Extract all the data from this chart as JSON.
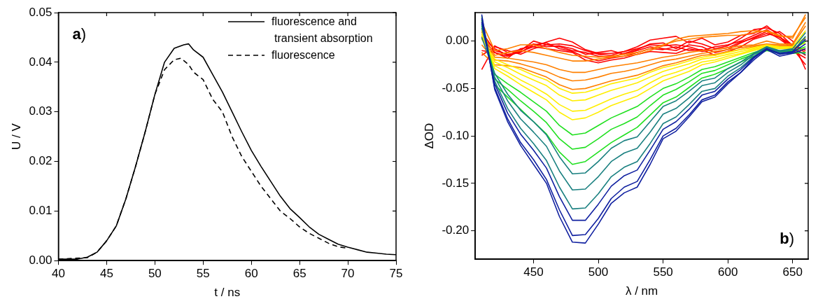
{
  "chart_data": [
    {
      "type": "line",
      "xlabel": "t / ns",
      "ylabel": "U / V",
      "xlim": [
        40,
        75
      ],
      "ylim": [
        0,
        0.05
      ],
      "xticks": [
        40,
        45,
        50,
        55,
        60,
        65,
        70,
        75
      ],
      "yticks": [
        {
          "value": 0,
          "label": "0.00"
        },
        {
          "value": 0.01,
          "label": "0.01"
        },
        {
          "value": 0.02,
          "label": "0.02"
        },
        {
          "value": 0.03,
          "label": "0.03"
        },
        {
          "value": 0.04,
          "label": "0.04"
        },
        {
          "value": 0.05,
          "label": "0.05"
        }
      ],
      "grid": false,
      "legend": "top right",
      "marker": "none",
      "annotations": [
        "a)"
      ],
      "series": [
        {
          "name": "fluorescence and transient absorption",
          "color": "#000000",
          "line_style": "solid",
          "x": [
            40,
            42,
            43,
            44,
            45,
            46,
            47,
            48,
            49,
            50,
            51,
            52,
            53,
            53.5,
            54,
            55,
            56,
            57,
            58,
            59,
            60,
            61,
            62,
            63,
            64,
            65,
            66,
            67,
            68,
            69,
            70,
            71,
            72,
            73,
            74,
            75
          ],
          "values": [
            0.0003,
            0.0003,
            0.0007,
            0.0017,
            0.004,
            0.007,
            0.0125,
            0.019,
            0.026,
            0.0335,
            0.04,
            0.0428,
            0.0435,
            0.0437,
            0.0425,
            0.041,
            0.0375,
            0.034,
            0.03,
            0.026,
            0.0222,
            0.019,
            0.016,
            0.013,
            0.0105,
            0.0087,
            0.0068,
            0.0053,
            0.0043,
            0.0033,
            0.0027,
            0.0022,
            0.0017,
            0.0015,
            0.0013,
            0.0012
          ]
        },
        {
          "name": "fluorescence",
          "color": "#000000",
          "line_style": "dashed",
          "x": [
            40,
            43,
            44,
            45,
            46,
            47,
            48,
            49,
            50,
            51,
            52,
            52.7,
            53.5,
            54,
            55,
            56,
            57,
            58,
            59,
            60,
            61,
            62,
            63,
            64,
            65,
            66,
            67,
            68,
            69,
            70
          ],
          "values": [
            0.0003,
            0.0006,
            0.0017,
            0.004,
            0.007,
            0.0125,
            0.019,
            0.026,
            0.0335,
            0.0385,
            0.0405,
            0.0408,
            0.0395,
            0.038,
            0.0365,
            0.0325,
            0.03,
            0.025,
            0.021,
            0.018,
            0.015,
            0.0125,
            0.01,
            0.0085,
            0.0068,
            0.0055,
            0.0045,
            0.0035,
            0.0028,
            0.0025
          ]
        }
      ]
    },
    {
      "type": "line",
      "xlabel": "λ / nm",
      "ylabel": "ΔOD",
      "xlim": [
        405,
        662
      ],
      "ylim": [
        -0.23,
        0.03
      ],
      "xticks": [
        450,
        500,
        550,
        600,
        650
      ],
      "yticks": [
        {
          "value": -0.2,
          "label": "-0.20"
        },
        {
          "value": -0.15,
          "label": "-0.15"
        },
        {
          "value": -0.1,
          "label": "-0.10"
        },
        {
          "value": -0.05,
          "label": "-0.05"
        },
        {
          "value": 0,
          "label": "0.00"
        }
      ],
      "grid": false,
      "legend": false,
      "marker": "none",
      "annotations": [
        "b)"
      ],
      "x": [
        410,
        420,
        430,
        440,
        450,
        460,
        470,
        480,
        490,
        500,
        510,
        520,
        530,
        540,
        550,
        560,
        570,
        580,
        590,
        600,
        610,
        620,
        630,
        640,
        650,
        660
      ],
      "series": [
        {
          "color": "#1020a0",
          "values": [
            0.028,
            -0.051,
            -0.085,
            -0.11,
            -0.13,
            -0.15,
            -0.185,
            -0.212,
            -0.213,
            -0.193,
            -0.171,
            -0.16,
            -0.154,
            -0.13,
            -0.103,
            -0.095,
            -0.08,
            -0.064,
            -0.059,
            -0.045,
            -0.033,
            -0.02,
            -0.009,
            -0.016,
            -0.013,
            -0.008
          ]
        },
        {
          "color": "#1020a0",
          "values": [
            0.024,
            -0.049,
            -0.082,
            -0.107,
            -0.125,
            -0.146,
            -0.178,
            -0.205,
            -0.204,
            -0.187,
            -0.166,
            -0.154,
            -0.148,
            -0.125,
            -0.1,
            -0.092,
            -0.078,
            -0.062,
            -0.057,
            -0.043,
            -0.033,
            -0.018,
            -0.008,
            -0.014,
            -0.012,
            -0.003
          ]
        },
        {
          "color": "#1020a0",
          "values": [
            0.02,
            -0.045,
            -0.076,
            -0.098,
            -0.115,
            -0.134,
            -0.164,
            -0.189,
            -0.189,
            -0.172,
            -0.153,
            -0.142,
            -0.136,
            -0.115,
            -0.093,
            -0.085,
            -0.072,
            -0.057,
            -0.053,
            -0.04,
            -0.03,
            -0.017,
            -0.008,
            -0.013,
            -0.011,
            0.002
          ]
        },
        {
          "color": "#1a8080",
          "values": [
            0.018,
            -0.042,
            -0.071,
            -0.092,
            -0.108,
            -0.126,
            -0.154,
            -0.177,
            -0.176,
            -0.161,
            -0.143,
            -0.133,
            -0.127,
            -0.108,
            -0.087,
            -0.08,
            -0.067,
            -0.053,
            -0.05,
            -0.037,
            -0.028,
            -0.016,
            -0.007,
            -0.012,
            -0.011,
            0.005
          ]
        },
        {
          "color": "#1a8080",
          "values": [
            0.014,
            -0.038,
            -0.063,
            -0.082,
            -0.096,
            -0.111,
            -0.137,
            -0.157,
            -0.156,
            -0.143,
            -0.127,
            -0.118,
            -0.113,
            -0.096,
            -0.077,
            -0.071,
            -0.06,
            -0.047,
            -0.044,
            -0.033,
            -0.025,
            -0.014,
            -0.006,
            -0.011,
            -0.009,
            -0.014
          ]
        },
        {
          "color": "#1a8080",
          "values": [
            0.004,
            -0.034,
            -0.056,
            -0.073,
            -0.085,
            -0.099,
            -0.122,
            -0.14,
            -0.139,
            -0.127,
            -0.113,
            -0.105,
            -0.101,
            -0.085,
            -0.069,
            -0.063,
            -0.053,
            -0.042,
            -0.039,
            -0.029,
            -0.022,
            -0.013,
            -0.006,
            -0.01,
            -0.008,
            0.009
          ]
        },
        {
          "color": "#20e020",
          "values": [
            0.026,
            -0.046,
            -0.059,
            -0.072,
            -0.085,
            -0.098,
            -0.117,
            -0.13,
            -0.127,
            -0.117,
            -0.107,
            -0.099,
            -0.091,
            -0.078,
            -0.065,
            -0.059,
            -0.049,
            -0.039,
            -0.035,
            -0.029,
            -0.022,
            -0.016,
            -0.01,
            -0.013,
            -0.013,
            -0.012
          ]
        },
        {
          "color": "#20e020",
          "values": [
            0.022,
            -0.04,
            -0.051,
            -0.063,
            -0.074,
            -0.086,
            -0.103,
            -0.114,
            -0.112,
            -0.103,
            -0.093,
            -0.087,
            -0.08,
            -0.068,
            -0.057,
            -0.051,
            -0.043,
            -0.034,
            -0.031,
            -0.025,
            -0.019,
            -0.014,
            -0.009,
            -0.011,
            -0.011,
            -0.006
          ]
        },
        {
          "color": "#20e020",
          "values": [
            0.016,
            -0.035,
            -0.045,
            -0.054,
            -0.064,
            -0.074,
            -0.089,
            -0.099,
            -0.097,
            -0.089,
            -0.081,
            -0.075,
            -0.069,
            -0.059,
            -0.05,
            -0.045,
            -0.038,
            -0.03,
            -0.027,
            -0.022,
            -0.017,
            -0.012,
            -0.008,
            -0.01,
            -0.01,
            0
          ]
        },
        {
          "color": "#ffee00",
          "values": [
            0.012,
            -0.029,
            -0.037,
            -0.046,
            -0.054,
            -0.062,
            -0.075,
            -0.083,
            -0.081,
            -0.075,
            -0.068,
            -0.063,
            -0.058,
            -0.05,
            -0.042,
            -0.037,
            -0.032,
            -0.025,
            -0.022,
            -0.018,
            -0.014,
            -0.01,
            -0.007,
            -0.008,
            -0.008,
            -0.008
          ]
        },
        {
          "color": "#ffee00",
          "values": [
            0.008,
            -0.026,
            -0.033,
            -0.041,
            -0.048,
            -0.056,
            -0.067,
            -0.074,
            -0.073,
            -0.067,
            -0.061,
            -0.056,
            -0.052,
            -0.044,
            -0.037,
            -0.033,
            -0.028,
            -0.022,
            -0.02,
            -0.016,
            -0.013,
            -0.009,
            -0.006,
            -0.007,
            -0.007,
            -0.002
          ]
        },
        {
          "color": "#ffee00",
          "values": [
            0.006,
            -0.022,
            -0.028,
            -0.035,
            -0.041,
            -0.047,
            -0.057,
            -0.063,
            -0.062,
            -0.057,
            -0.052,
            -0.048,
            -0.044,
            -0.038,
            -0.032,
            -0.028,
            -0.024,
            -0.019,
            -0.017,
            -0.014,
            -0.011,
            -0.008,
            -0.005,
            -0.006,
            -0.006,
            0.004
          ]
        },
        {
          "color": "#ffee00",
          "values": [
            0.002,
            -0.019,
            -0.025,
            -0.03,
            -0.036,
            -0.041,
            -0.05,
            -0.055,
            -0.054,
            -0.05,
            -0.045,
            -0.042,
            -0.039,
            -0.033,
            -0.028,
            -0.025,
            -0.021,
            -0.017,
            -0.015,
            -0.012,
            -0.009,
            -0.007,
            -0.004,
            -0.006,
            -0.006,
            0.011
          ]
        },
        {
          "color": "#ff8000",
          "values": [
            -0.012,
            -0.025,
            -0.026,
            -0.028,
            -0.033,
            -0.038,
            -0.046,
            -0.051,
            -0.05,
            -0.046,
            -0.042,
            -0.039,
            -0.036,
            -0.031,
            -0.026,
            -0.023,
            -0.019,
            -0.015,
            -0.014,
            -0.011,
            -0.009,
            -0.006,
            -0.004,
            -0.005,
            -0.005,
            0.003
          ]
        },
        {
          "color": "#ff8000",
          "values": [
            -0.004,
            -0.02,
            -0.021,
            -0.024,
            -0.028,
            -0.032,
            -0.038,
            -0.042,
            -0.041,
            -0.038,
            -0.034,
            -0.032,
            -0.029,
            -0.025,
            -0.021,
            -0.019,
            -0.016,
            -0.013,
            -0.011,
            -0.009,
            -0.007,
            -0.005,
            -0.003,
            -0.004,
            -0.004,
            0.016
          ]
        },
        {
          "color": "#ff8000",
          "values": [
            0.004,
            -0.017,
            -0.018,
            -0.02,
            -0.022,
            -0.025,
            -0.03,
            -0.033,
            -0.033,
            -0.03,
            -0.027,
            -0.025,
            -0.023,
            -0.02,
            -0.017,
            -0.015,
            -0.012,
            -0.01,
            -0.009,
            -0.007,
            -0.005,
            -0.004,
            0,
            -0.003,
            -0.003,
            0.02
          ]
        },
        {
          "color": "#ff8000",
          "values": [
            0.01,
            -0.015,
            -0.012,
            -0.01,
            -0.012,
            -0.015,
            -0.018,
            -0.021,
            -0.021,
            -0.019,
            -0.017,
            -0.016,
            -0.014,
            -0.01,
            -0.005,
            0.002,
            0.005,
            0.006,
            0.007,
            0.008,
            0.01,
            0.011,
            0.01,
            0.005,
            0.005,
            0.025
          ]
        },
        {
          "color": "#ff8000",
          "values": [
            0.02,
            -0.01,
            -0.008,
            -0.004,
            -0.004,
            -0.008,
            -0.012,
            -0.015,
            -0.016,
            -0.017,
            -0.016,
            -0.014,
            -0.012,
            -0.008,
            -0.004,
            0,
            0.002,
            0.004,
            0.005,
            0.006,
            0.006,
            0.009,
            0.011,
            0.006,
            0.003,
            0.028
          ]
        },
        {
          "color": "#ff0000",
          "values": [
            0.005,
            -0.008,
            -0.015,
            -0.01,
            0,
            -0.004,
            -0.006,
            -0.01,
            -0.012,
            -0.016,
            -0.017,
            -0.013,
            -0.009,
            -0.003,
            -0.002,
            -0.008,
            0,
            -0.003,
            -0.008,
            -0.005,
            0.003,
            0.012,
            0.014,
            0.008,
            -0.005,
            -0.012
          ]
        },
        {
          "color": "#ff0000",
          "values": [
            -0.01,
            -0.012,
            -0.018,
            -0.008,
            -0.006,
            -0.001,
            0.003,
            -0.001,
            -0.009,
            -0.013,
            -0.013,
            -0.011,
            -0.006,
            0.001,
            0.003,
            0.005,
            -0.002,
            0.003,
            -0.004,
            -0.001,
            0.006,
            0.008,
            0.016,
            0.005,
            -0.01,
            -0.018
          ]
        },
        {
          "color": "#ff0000",
          "values": [
            -0.03,
            -0.005,
            -0.012,
            -0.009,
            -0.003,
            -0.006,
            -0.005,
            -0.008,
            -0.014,
            -0.012,
            -0.01,
            -0.014,
            -0.01,
            -0.006,
            -0.008,
            -0.01,
            -0.004,
            -0.006,
            -0.012,
            -0.009,
            -0.002,
            0.004,
            0.01,
            0.002,
            -0.008,
            -0.025
          ]
        },
        {
          "color": "#ff0000",
          "values": [
            0.01,
            -0.01,
            -0.014,
            -0.012,
            -0.004,
            -0.002,
            -0.008,
            -0.011,
            -0.017,
            -0.021,
            -0.018,
            -0.016,
            -0.012,
            -0.008,
            -0.009,
            -0.006,
            -0.01,
            -0.009,
            -0.015,
            -0.011,
            -0.006,
            0.002,
            0.006,
            0.01,
            0,
            -0.03
          ]
        },
        {
          "color": "#ff0000",
          "values": [
            -0.015,
            -0.006,
            -0.01,
            -0.014,
            -0.008,
            -0.004,
            -0.003,
            -0.005,
            -0.01,
            -0.014,
            -0.015,
            -0.011,
            -0.008,
            -0.004,
            -0.005,
            -0.004,
            -0.006,
            -0.01,
            -0.006,
            -0.004,
            0,
            0.006,
            0.012,
            0.004,
            -0.004,
            -0.01
          ]
        },
        {
          "color": "#ff0000",
          "values": [
            0.003,
            -0.012,
            -0.016,
            -0.011,
            -0.006,
            -0.008,
            -0.01,
            -0.012,
            -0.02,
            -0.023,
            -0.02,
            -0.018,
            -0.014,
            -0.011,
            -0.012,
            -0.013,
            -0.008,
            -0.011,
            -0.009,
            -0.007,
            -0.001,
            0.003,
            0.008,
            0.004,
            -0.006,
            -0.015
          ]
        }
      ]
    }
  ]
}
